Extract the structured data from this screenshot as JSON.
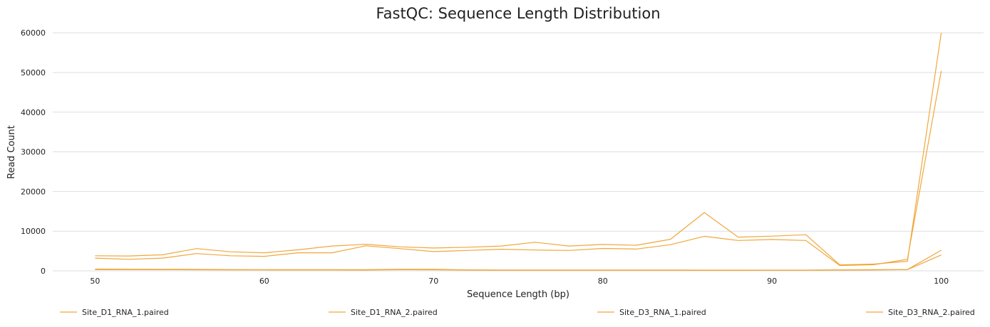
{
  "chart_data": {
    "type": "line",
    "title": "FastQC: Sequence Length Distribution",
    "xlabel": "Sequence Length (bp)",
    "ylabel": "Read Count",
    "xlim": [
      47.5,
      102.5
    ],
    "ylim": [
      0,
      62000
    ],
    "xticks": [
      50,
      60,
      70,
      80,
      90,
      100
    ],
    "yticks": [
      0,
      10000,
      20000,
      30000,
      40000,
      50000,
      60000
    ],
    "grid": true,
    "legend_position": "bottom",
    "line_color": "#f0a73c",
    "x": [
      50,
      52,
      54,
      56,
      58,
      60,
      62,
      64,
      66,
      68,
      70,
      72,
      74,
      76,
      78,
      80,
      82,
      84,
      86,
      88,
      90,
      92,
      94,
      96,
      98,
      100
    ],
    "series": [
      {
        "name": "Site_D1_RNA_1.paired",
        "values": [
          3800,
          3750,
          4050,
          5600,
          4800,
          4550,
          5300,
          6250,
          6700,
          6050,
          5750,
          5950,
          6250,
          7200,
          6250,
          6650,
          6450,
          7950,
          14700,
          8500,
          8750,
          9100,
          1500,
          1700,
          2400,
          60000
        ]
      },
      {
        "name": "Site_D1_RNA_2.paired",
        "values": [
          3200,
          2900,
          3200,
          4350,
          3800,
          3650,
          4550,
          4550,
          6300,
          5600,
          4850,
          5150,
          5450,
          5250,
          5150,
          5650,
          5500,
          6600,
          8700,
          7650,
          7900,
          7650,
          1350,
          1550,
          2900,
          50400
        ]
      },
      {
        "name": "Site_D3_RNA_1.paired",
        "values": [
          450,
          420,
          400,
          360,
          330,
          300,
          300,
          290,
          280,
          400,
          380,
          250,
          220,
          210,
          200,
          200,
          190,
          190,
          180,
          180,
          180,
          180,
          250,
          280,
          330,
          5200
        ]
      },
      {
        "name": "Site_D3_RNA_2.paired",
        "values": [
          300,
          300,
          280,
          270,
          250,
          230,
          220,
          210,
          200,
          280,
          260,
          190,
          170,
          160,
          150,
          150,
          140,
          140,
          130,
          130,
          140,
          150,
          200,
          220,
          300,
          4000
        ]
      }
    ]
  }
}
